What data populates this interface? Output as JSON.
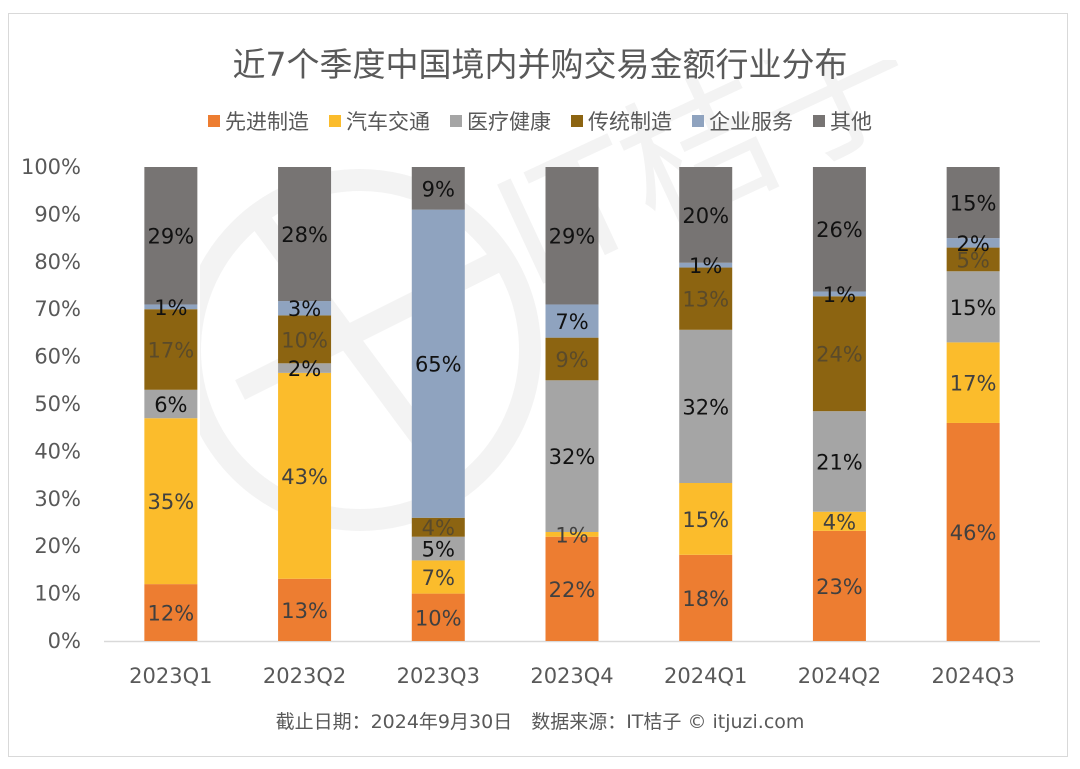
{
  "title": "近7个季度中国境内并购交易金额行业分布",
  "footer": "截止日期：2024年9月30日　数据来源：IT桔子 © itjuzi.com",
  "watermark_text": "IT桔子 ITJUZI.COM",
  "chart_data": {
    "type": "bar",
    "stacked": true,
    "percent_stacked": true,
    "title": "近7个季度中国境内并购交易金额行业分布",
    "xlabel": "",
    "ylabel": "",
    "ylim": [
      0,
      100
    ],
    "yticks": [
      "0%",
      "10%",
      "20%",
      "30%",
      "40%",
      "50%",
      "60%",
      "70%",
      "80%",
      "90%",
      "100%"
    ],
    "grid": false,
    "legend_position": "top",
    "categories": [
      "2023Q1",
      "2023Q2",
      "2023Q3",
      "2023Q4",
      "2024Q1",
      "2024Q2",
      "2024Q3"
    ],
    "series": [
      {
        "name": "先进制造",
        "color": "#ED7D31",
        "label_color": "#404040",
        "values": [
          12,
          13,
          10,
          22,
          18,
          23,
          46
        ]
      },
      {
        "name": "汽车交通",
        "color": "#FBBC2C",
        "label_color": "#404040",
        "values": [
          35,
          43,
          7,
          1,
          15,
          4,
          17
        ]
      },
      {
        "name": "医疗健康",
        "color": "#A5A5A5",
        "label_color": "#111111",
        "values": [
          6,
          2,
          5,
          32,
          32,
          21,
          15
        ]
      },
      {
        "name": "传统制造",
        "color": "#8C6411",
        "label_color": "#5a4a2a",
        "values": [
          17,
          10,
          4,
          9,
          13,
          24,
          5
        ]
      },
      {
        "name": "企业服务",
        "color": "#8FA3BF",
        "label_color": "#111111",
        "values": [
          1,
          3,
          65,
          7,
          1,
          1,
          2
        ]
      },
      {
        "name": "其他",
        "color": "#777473",
        "label_color": "#111111",
        "values": [
          29,
          28,
          9,
          29,
          20,
          26,
          15
        ]
      }
    ]
  }
}
